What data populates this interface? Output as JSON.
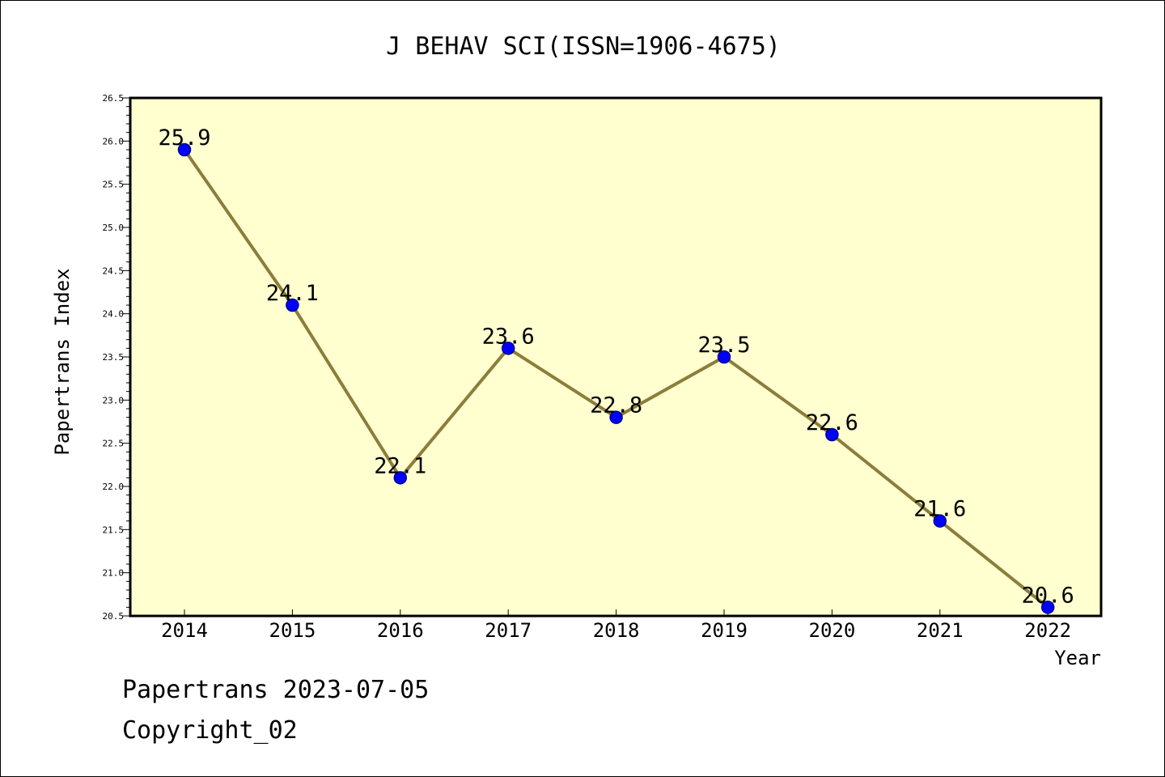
{
  "chart_data": {
    "type": "line",
    "title": "J BEHAV SCI(ISSN=1906-4675)",
    "xlabel": "Year",
    "ylabel": "Papertrans Index",
    "categories": [
      "2014",
      "2015",
      "2016",
      "2017",
      "2018",
      "2019",
      "2020",
      "2021",
      "2022"
    ],
    "series": [
      {
        "values": [
          25.9,
          24.1,
          22.1,
          23.6,
          22.8,
          23.5,
          22.6,
          21.6,
          20.6
        ]
      }
    ],
    "data_labels": [
      "25.9",
      "24.1",
      "22.1",
      "23.6",
      "22.8",
      "23.5",
      "22.6",
      "21.6",
      "20.6"
    ],
    "ylim": [
      20.5,
      26.5
    ],
    "yticks": [
      "20.5",
      "21.0",
      "21.5",
      "22.0",
      "22.5",
      "23.0",
      "23.5",
      "24.0",
      "24.5",
      "25.0",
      "25.5",
      "26.0",
      "26.5"
    ],
    "grid": false,
    "legend": "none",
    "colors": {
      "plot_background": "#ffffd0",
      "line": "#8b7d3a",
      "marker": "#0000ff",
      "marker_edge": "#00008b"
    }
  },
  "footer": {
    "line1": "Papertrans 2023-07-05",
    "line2": "Copyright_02"
  }
}
